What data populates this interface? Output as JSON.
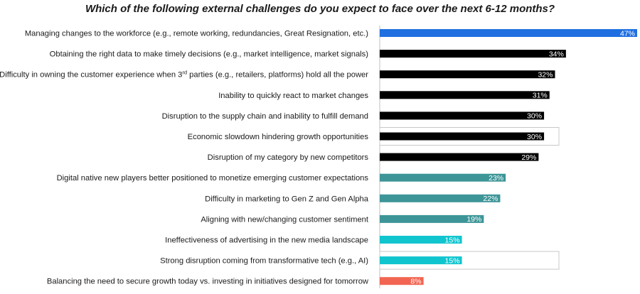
{
  "chart_data": {
    "type": "bar",
    "orientation": "horizontal",
    "title": "Which of the following external challenges do you expect to face over the next 6-12 months?",
    "xlabel": "",
    "ylabel": "",
    "xlim": [
      0,
      47
    ],
    "unit": "%",
    "categories": [
      "Managing changes to the workforce (e.g., remote working, redundancies, Great Resignation, etc.)",
      "Obtaining the right data to make timely decisions (e.g., market intelligence, market signals)",
      "Difficulty in owning the customer experience when 3rd parties (e.g., retailers, platforms) hold all the power",
      "Inability to quickly react to market changes",
      "Disruption to the supply chain and inability to fulfill demand",
      "Economic slowdown hindering growth opportunities",
      "Disruption of my category by new competitors",
      "Digital native new players better positioned to monetize emerging customer expectations",
      "Difficulty in marketing to Gen Z and Gen Alpha",
      "Aligning with new/changing customer sentiment",
      "Ineffectiveness of advertising in the new media landscape",
      "Strong disruption coming from transformative tech (e.g., AI)",
      "Balancing the need to secure growth today vs. investing in initiatives designed for tomorrow"
    ],
    "values": [
      47,
      34,
      32,
      31,
      30,
      30,
      29,
      23,
      22,
      19,
      15,
      15,
      8
    ],
    "value_labels": [
      "47%",
      "34%",
      "32%",
      "31%",
      "30%",
      "30%",
      "29%",
      "23%",
      "22%",
      "19%",
      "15%",
      "15%",
      "8%"
    ],
    "bar_colors": [
      "#1f6fe0",
      "#000000",
      "#000000",
      "#000000",
      "#000000",
      "#000000",
      "#000000",
      "#3d9597",
      "#3d9597",
      "#3d9597",
      "#11c5cf",
      "#11c5cf",
      "#f26552"
    ],
    "highlighted": [
      false,
      false,
      false,
      false,
      false,
      true,
      false,
      false,
      false,
      false,
      false,
      true,
      false
    ]
  }
}
